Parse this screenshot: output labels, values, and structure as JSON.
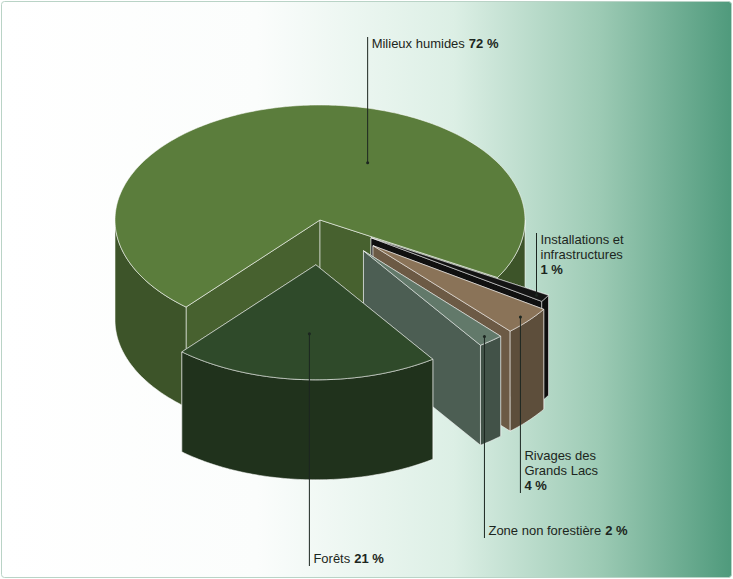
{
  "chart_data": {
    "type": "pie",
    "categories": [
      "Milieux humides",
      "Installations et infrastructures",
      "Rivages des Grands Lacs",
      "Zone non forestière",
      "Forêts"
    ],
    "values": [
      72,
      1,
      4,
      2,
      21
    ],
    "value_labels": [
      "72 %",
      "1 %",
      "4 %",
      "2 %",
      "21 %"
    ],
    "colors": [
      "#5b7d3c",
      "#141414",
      "#8a7358",
      "#62796a",
      "#2f4a2a"
    ],
    "data_labels": true
  }
}
